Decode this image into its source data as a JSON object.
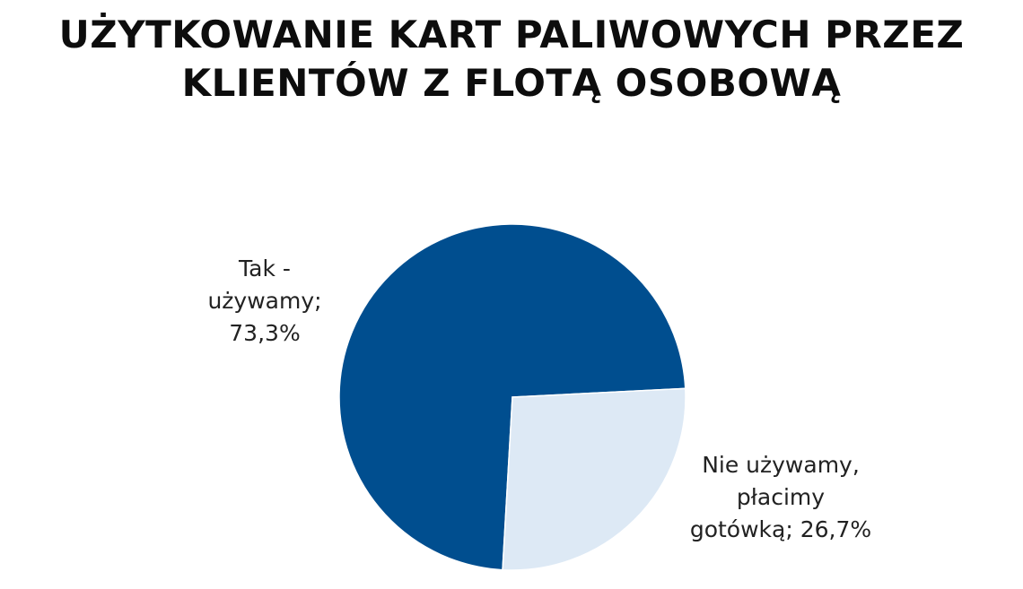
{
  "chart_data": {
    "type": "pie",
    "title_lines": [
      "UŻYTKOWANIE KART PALIWOWYCH PRZEZ",
      "KLIENTÓW Z FLOTĄ OSOBOWĄ"
    ],
    "slices": [
      {
        "name": "Tak - używamy",
        "value": 73.3,
        "label_lines": [
          "Tak -",
          "używamy;",
          "73,3%"
        ],
        "color": "#004e8f"
      },
      {
        "name": "Nie używamy, płacimy gotówką",
        "value": 26.7,
        "label_lines": [
          "Nie używamy,",
          "płacimy",
          "gotówką; 26,7%"
        ],
        "color": "#dde9f5"
      }
    ]
  }
}
